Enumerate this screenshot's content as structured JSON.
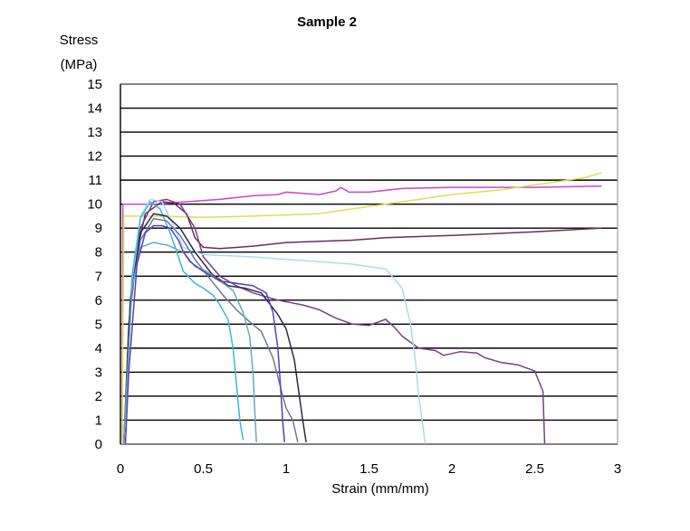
{
  "chart_data": {
    "type": "line",
    "title": "Sample 2",
    "xlabel": "Strain (mm/mm)",
    "ylabel_line1": "Stress",
    "ylabel_line2": "(MPa)",
    "xlim": [
      0,
      3
    ],
    "ylim": [
      0,
      15
    ],
    "xticks": [
      {
        "value": 0,
        "label": "0"
      },
      {
        "value": 0.5,
        "label": "0.5"
      },
      {
        "value": 1,
        "label": "1"
      },
      {
        "value": 1.5,
        "label": "1.5"
      },
      {
        "value": 2,
        "label": "2"
      },
      {
        "value": 2.5,
        "label": "2.5"
      },
      {
        "value": 3,
        "label": "3"
      }
    ],
    "yticks": [
      {
        "value": 0,
        "label": "0"
      },
      {
        "value": 1,
        "label": "1"
      },
      {
        "value": 2,
        "label": "2"
      },
      {
        "value": 3,
        "label": "3"
      },
      {
        "value": 4,
        "label": "4"
      },
      {
        "value": 5,
        "label": "5"
      },
      {
        "value": 6,
        "label": "6"
      },
      {
        "value": 7,
        "label": "7"
      },
      {
        "value": 8,
        "label": "8"
      },
      {
        "value": 9,
        "label": "9"
      },
      {
        "value": 10,
        "label": "10"
      },
      {
        "value": 11,
        "label": "11"
      },
      {
        "value": 12,
        "label": "12"
      },
      {
        "value": 13,
        "label": "13"
      },
      {
        "value": 14,
        "label": "14"
      },
      {
        "value": 15,
        "label": "15"
      }
    ],
    "grid": true,
    "legend": "none",
    "series": [
      {
        "name": "magenta",
        "color": "#cc44cc",
        "points": [
          [
            0.01,
            0
          ],
          [
            0.015,
            10.0
          ],
          [
            0.2,
            10.0
          ],
          [
            0.4,
            10.1
          ],
          [
            0.6,
            10.2
          ],
          [
            0.8,
            10.35
          ],
          [
            0.95,
            10.4
          ],
          [
            1.0,
            10.5
          ],
          [
            1.1,
            10.45
          ],
          [
            1.2,
            10.4
          ],
          [
            1.3,
            10.55
          ],
          [
            1.33,
            10.7
          ],
          [
            1.38,
            10.5
          ],
          [
            1.5,
            10.5
          ],
          [
            1.7,
            10.65
          ],
          [
            2.0,
            10.7
          ],
          [
            2.5,
            10.7
          ],
          [
            2.9,
            10.75
          ]
        ]
      },
      {
        "name": "yellow",
        "color": "#dddd55",
        "points": [
          [
            0.01,
            0
          ],
          [
            0.02,
            9.5
          ],
          [
            0.2,
            9.5
          ],
          [
            0.5,
            9.45
          ],
          [
            0.8,
            9.5
          ],
          [
            1.0,
            9.55
          ],
          [
            1.2,
            9.6
          ],
          [
            1.5,
            9.9
          ],
          [
            1.8,
            10.2
          ],
          [
            2.0,
            10.4
          ],
          [
            2.3,
            10.6
          ],
          [
            2.6,
            10.9
          ],
          [
            2.8,
            11.1
          ],
          [
            2.9,
            11.3
          ]
        ]
      },
      {
        "name": "dark-purple-long",
        "color": "#6b2d5c",
        "points": [
          [
            0.02,
            0
          ],
          [
            0.05,
            5
          ],
          [
            0.1,
            8
          ],
          [
            0.15,
            9.6
          ],
          [
            0.25,
            10.1
          ],
          [
            0.32,
            10.05
          ],
          [
            0.4,
            9.6
          ],
          [
            0.45,
            8.6
          ],
          [
            0.5,
            8.2
          ],
          [
            0.6,
            8.15
          ],
          [
            0.8,
            8.25
          ],
          [
            1.0,
            8.4
          ],
          [
            1.2,
            8.45
          ],
          [
            1.4,
            8.5
          ],
          [
            1.6,
            8.6
          ],
          [
            1.8,
            8.65
          ],
          [
            2.0,
            8.7
          ],
          [
            2.2,
            8.75
          ],
          [
            2.5,
            8.85
          ],
          [
            2.9,
            9.0
          ]
        ]
      },
      {
        "name": "purple-mid",
        "color": "#7a3f8a",
        "points": [
          [
            0.02,
            0
          ],
          [
            0.06,
            6
          ],
          [
            0.12,
            9.0
          ],
          [
            0.2,
            10.1
          ],
          [
            0.28,
            10.2
          ],
          [
            0.36,
            10.0
          ],
          [
            0.45,
            9.0
          ],
          [
            0.5,
            7.8
          ],
          [
            0.6,
            7.0
          ],
          [
            0.7,
            6.6
          ],
          [
            0.8,
            6.3
          ],
          [
            0.95,
            6.0
          ],
          [
            1.1,
            5.8
          ],
          [
            1.2,
            5.6
          ],
          [
            1.3,
            5.25
          ],
          [
            1.4,
            5.0
          ],
          [
            1.5,
            4.95
          ],
          [
            1.6,
            5.2
          ],
          [
            1.65,
            4.9
          ],
          [
            1.7,
            4.5
          ],
          [
            1.8,
            4.0
          ],
          [
            1.9,
            3.9
          ],
          [
            1.95,
            3.7
          ],
          [
            2.05,
            3.85
          ],
          [
            2.15,
            3.8
          ],
          [
            2.2,
            3.6
          ],
          [
            2.3,
            3.4
          ],
          [
            2.4,
            3.3
          ],
          [
            2.5,
            3.05
          ],
          [
            2.55,
            2.2
          ],
          [
            2.56,
            0
          ]
        ]
      },
      {
        "name": "light-blue",
        "color": "#a8dcef",
        "points": [
          [
            0.02,
            0
          ],
          [
            0.06,
            6
          ],
          [
            0.12,
            9.5
          ],
          [
            0.18,
            10.2
          ],
          [
            0.25,
            10.1
          ],
          [
            0.3,
            9.4
          ],
          [
            0.38,
            8.2
          ],
          [
            0.5,
            7.9
          ],
          [
            0.8,
            7.8
          ],
          [
            1.0,
            7.7
          ],
          [
            1.2,
            7.6
          ],
          [
            1.4,
            7.5
          ],
          [
            1.5,
            7.4
          ],
          [
            1.6,
            7.3
          ],
          [
            1.7,
            6.5
          ],
          [
            1.75,
            5.0
          ],
          [
            1.78,
            3.5
          ],
          [
            1.8,
            2.0
          ],
          [
            1.84,
            0
          ]
        ]
      },
      {
        "name": "cyan-short",
        "color": "#3ab8d8",
        "points": [
          [
            0.02,
            0
          ],
          [
            0.07,
            7
          ],
          [
            0.12,
            9.4
          ],
          [
            0.18,
            10.1
          ],
          [
            0.24,
            9.8
          ],
          [
            0.3,
            8.8
          ],
          [
            0.38,
            7.2
          ],
          [
            0.45,
            6.7
          ],
          [
            0.5,
            6.5
          ],
          [
            0.56,
            6.2
          ],
          [
            0.6,
            5.8
          ],
          [
            0.65,
            5.2
          ],
          [
            0.68,
            4.0
          ],
          [
            0.7,
            2.5
          ],
          [
            0.72,
            1.0
          ],
          [
            0.74,
            0.2
          ]
        ]
      },
      {
        "name": "slate",
        "color": "#6a7a9a",
        "points": [
          [
            0.02,
            0
          ],
          [
            0.06,
            6
          ],
          [
            0.12,
            8.5
          ],
          [
            0.2,
            9.4
          ],
          [
            0.28,
            9.3
          ],
          [
            0.36,
            8.7
          ],
          [
            0.45,
            7.7
          ],
          [
            0.55,
            6.8
          ],
          [
            0.62,
            6.2
          ],
          [
            0.7,
            5.6
          ],
          [
            0.78,
            5.1
          ],
          [
            0.85,
            4.7
          ],
          [
            0.92,
            3.6
          ],
          [
            0.98,
            2.0
          ],
          [
            1.0,
            1.5
          ],
          [
            1.04,
            1.0
          ],
          [
            1.07,
            0.1
          ]
        ]
      },
      {
        "name": "dark-navy",
        "color": "#2a2a4a",
        "points": [
          [
            0.02,
            0
          ],
          [
            0.06,
            6
          ],
          [
            0.12,
            8.8
          ],
          [
            0.2,
            9.6
          ],
          [
            0.28,
            9.5
          ],
          [
            0.36,
            9.0
          ],
          [
            0.45,
            8.0
          ],
          [
            0.55,
            7.1
          ],
          [
            0.65,
            6.6
          ],
          [
            0.75,
            6.5
          ],
          [
            0.85,
            6.3
          ],
          [
            0.95,
            5.4
          ],
          [
            1.0,
            4.8
          ],
          [
            1.05,
            3.5
          ],
          [
            1.08,
            2.0
          ],
          [
            1.1,
            1.0
          ],
          [
            1.12,
            0.1
          ]
        ]
      },
      {
        "name": "teal",
        "color": "#66aabb",
        "points": [
          [
            0.02,
            0
          ],
          [
            0.07,
            6.5
          ],
          [
            0.12,
            8.2
          ],
          [
            0.2,
            8.4
          ],
          [
            0.28,
            8.3
          ],
          [
            0.38,
            8.0
          ],
          [
            0.45,
            7.4
          ],
          [
            0.52,
            7.2
          ],
          [
            0.6,
            6.8
          ],
          [
            0.68,
            6.4
          ],
          [
            0.74,
            5.5
          ],
          [
            0.78,
            4.5
          ],
          [
            0.8,
            3.0
          ],
          [
            0.81,
            1.5
          ],
          [
            0.82,
            0.1
          ]
        ]
      },
      {
        "name": "blue-purple",
        "color": "#5a3fb8",
        "points": [
          [
            0.03,
            0
          ],
          [
            0.05,
            3
          ],
          [
            0.1,
            7.5
          ],
          [
            0.15,
            8.8
          ],
          [
            0.2,
            9.1
          ],
          [
            0.25,
            9.1
          ],
          [
            0.3,
            9.0
          ],
          [
            0.35,
            8.5
          ],
          [
            0.38,
            8.0
          ],
          [
            0.42,
            7.6
          ],
          [
            0.5,
            7.2
          ],
          [
            0.6,
            6.8
          ],
          [
            0.7,
            6.7
          ],
          [
            0.8,
            6.6
          ],
          [
            0.88,
            6.3
          ],
          [
            0.92,
            5.5
          ],
          [
            0.95,
            4.0
          ],
          [
            0.97,
            2.0
          ],
          [
            0.98,
            0.9
          ],
          [
            0.99,
            0.1
          ]
        ]
      }
    ]
  }
}
